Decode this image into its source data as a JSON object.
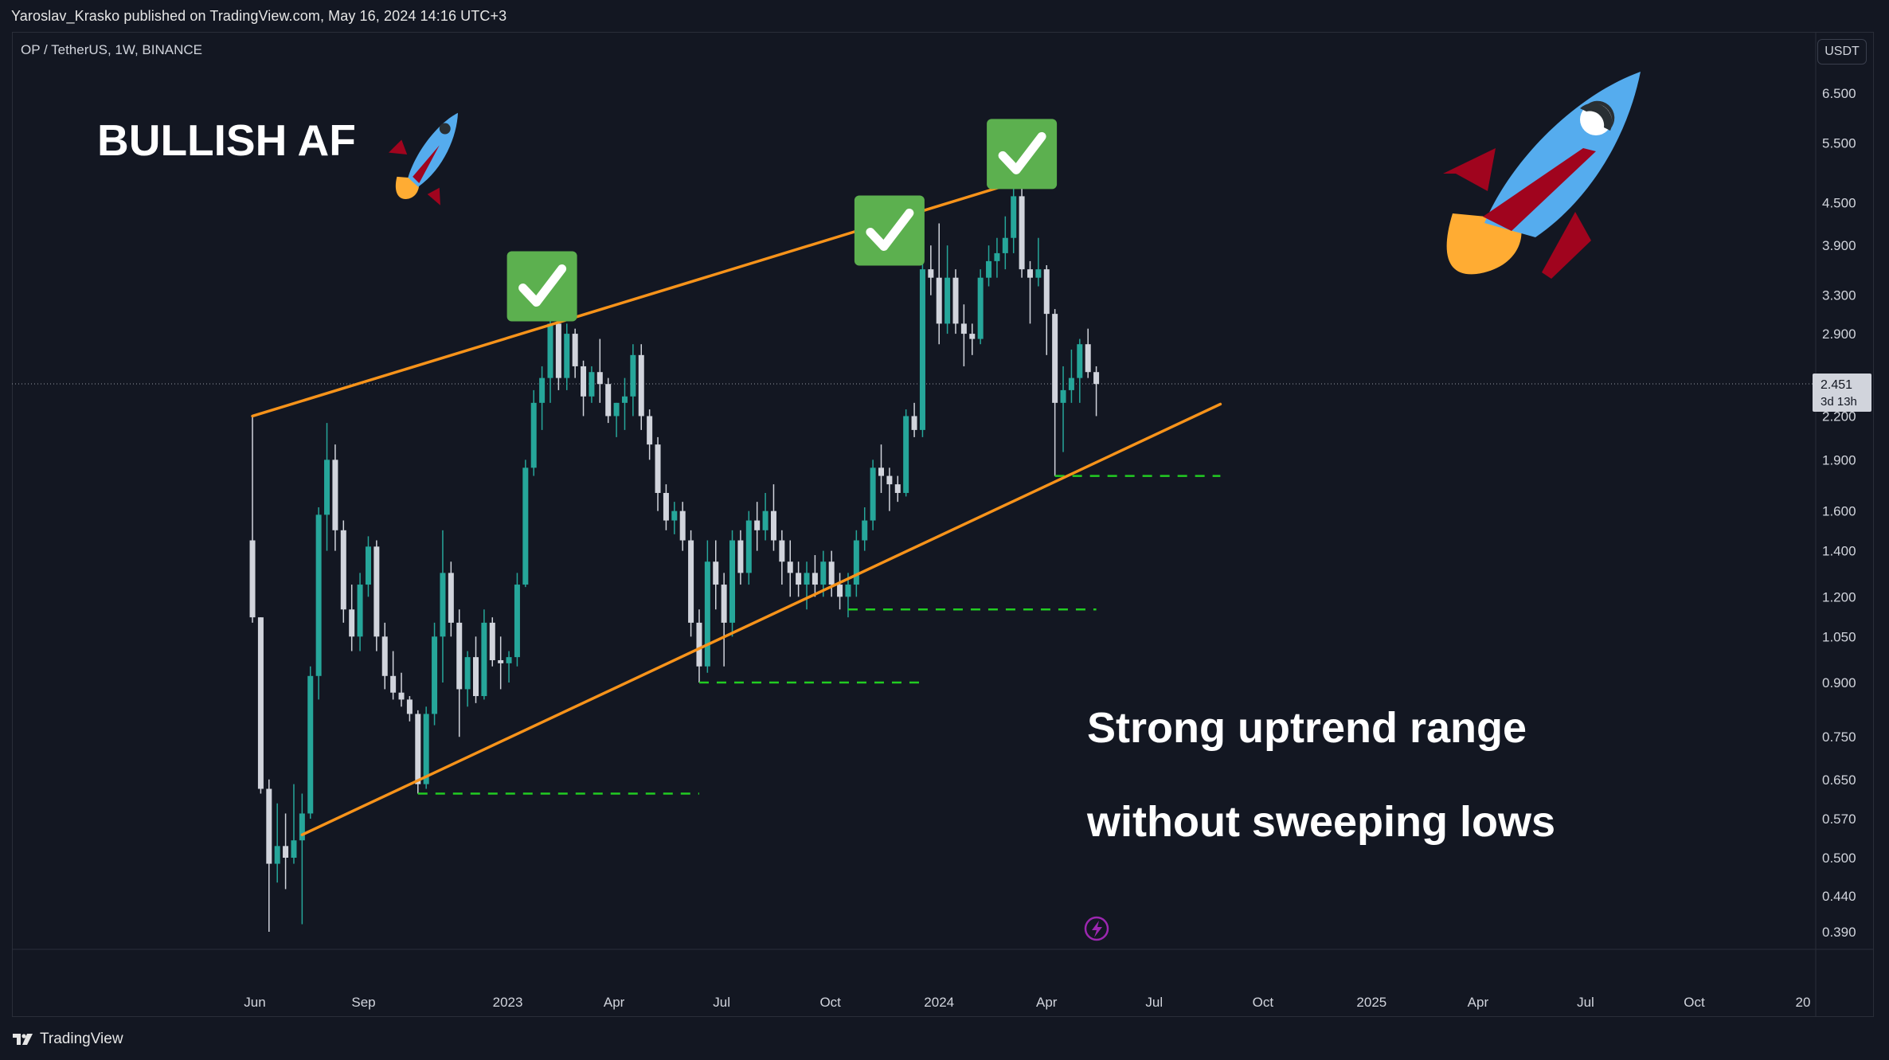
{
  "header": {
    "published_text": "Yaroslav_Krasko published on TradingView.com, May 16, 2024 14:16 UTC+3",
    "symbol": "OP / TetherUS, 1W, BINANCE",
    "currency_button": "USDT"
  },
  "footer": {
    "brand": "TradingView"
  },
  "annotations": {
    "headline": "BULLISH AF",
    "note_line1": "Strong uptrend range",
    "note_line2": "without sweeping lows"
  },
  "price_tag": {
    "price": "2.451",
    "countdown": "3d 13h"
  },
  "colors": {
    "background": "#131722",
    "up_candle": "#26a69a",
    "down_candle": "#d1d4dc",
    "trendline": "#f7931a",
    "support_dash": "#22cc22",
    "check_bg": "#5cb04f",
    "rocket_body": "#55acee",
    "rocket_fin": "#a0041e",
    "rocket_flame": "#ffac33"
  },
  "chart_data": {
    "type": "candlestick",
    "title": "OP / TetherUS, 1W, BINANCE",
    "scale": "log",
    "ylim": [
      0.36,
      8.0
    ],
    "y_ticks": [
      "6.500",
      "5.500",
      "4.500",
      "3.900",
      "3.300",
      "2.900",
      "2.200",
      "1.900",
      "1.600",
      "1.400",
      "1.200",
      "1.050",
      "0.900",
      "0.750",
      "0.650",
      "0.570",
      "0.500",
      "0.440",
      "0.390"
    ],
    "x_ticks": [
      "Jun",
      "Sep",
      "2023",
      "Apr",
      "Jul",
      "Oct",
      "2024",
      "Apr",
      "Jul",
      "Oct",
      "2025",
      "Apr",
      "Jul",
      "Oct",
      "20"
    ],
    "x_tick_dates": [
      "2022-06-01",
      "2022-09-01",
      "2023-01-01",
      "2023-04-01",
      "2023-07-01",
      "2023-10-01",
      "2024-01-01",
      "2024-04-01",
      "2024-07-01",
      "2024-10-01",
      "2025-01-01",
      "2025-04-01",
      "2025-07-01",
      "2025-10-01",
      "2026-01-01"
    ],
    "last_price": 2.451,
    "candles": [
      {
        "date": "2022-05-30",
        "o": 1.45,
        "h": 2.2,
        "l": 1.1,
        "c": 1.12
      },
      {
        "date": "2022-06-06",
        "o": 1.12,
        "h": 1.12,
        "l": 0.62,
        "c": 0.63
      },
      {
        "date": "2022-06-13",
        "o": 0.63,
        "h": 0.65,
        "l": 0.39,
        "c": 0.49
      },
      {
        "date": "2022-06-20",
        "o": 0.49,
        "h": 0.6,
        "l": 0.46,
        "c": 0.52
      },
      {
        "date": "2022-06-27",
        "o": 0.52,
        "h": 0.58,
        "l": 0.45,
        "c": 0.5
      },
      {
        "date": "2022-07-04",
        "o": 0.5,
        "h": 0.64,
        "l": 0.49,
        "c": 0.53
      },
      {
        "date": "2022-07-11",
        "o": 0.53,
        "h": 0.62,
        "l": 0.4,
        "c": 0.58
      },
      {
        "date": "2022-07-18",
        "o": 0.58,
        "h": 0.95,
        "l": 0.57,
        "c": 0.92
      },
      {
        "date": "2022-07-25",
        "o": 0.92,
        "h": 1.62,
        "l": 0.85,
        "c": 1.58
      },
      {
        "date": "2022-08-01",
        "o": 1.58,
        "h": 2.15,
        "l": 1.4,
        "c": 1.9
      },
      {
        "date": "2022-08-08",
        "o": 1.9,
        "h": 2.0,
        "l": 1.4,
        "c": 1.5
      },
      {
        "date": "2022-08-15",
        "o": 1.5,
        "h": 1.55,
        "l": 1.1,
        "c": 1.15
      },
      {
        "date": "2022-08-22",
        "o": 1.15,
        "h": 1.25,
        "l": 1.0,
        "c": 1.05
      },
      {
        "date": "2022-08-29",
        "o": 1.05,
        "h": 1.3,
        "l": 1.0,
        "c": 1.25
      },
      {
        "date": "2022-09-05",
        "o": 1.25,
        "h": 1.47,
        "l": 1.2,
        "c": 1.42
      },
      {
        "date": "2022-09-12",
        "o": 1.42,
        "h": 1.45,
        "l": 1.0,
        "c": 1.05
      },
      {
        "date": "2022-09-19",
        "o": 1.05,
        "h": 1.1,
        "l": 0.88,
        "c": 0.92
      },
      {
        "date": "2022-09-26",
        "o": 0.92,
        "h": 1.0,
        "l": 0.85,
        "c": 0.87
      },
      {
        "date": "2022-10-03",
        "o": 0.87,
        "h": 0.93,
        "l": 0.83,
        "c": 0.85
      },
      {
        "date": "2022-10-10",
        "o": 0.85,
        "h": 0.86,
        "l": 0.79,
        "c": 0.81
      },
      {
        "date": "2022-10-17",
        "o": 0.81,
        "h": 0.82,
        "l": 0.62,
        "c": 0.64
      },
      {
        "date": "2022-10-24",
        "o": 0.64,
        "h": 0.83,
        "l": 0.63,
        "c": 0.81
      },
      {
        "date": "2022-10-31",
        "o": 0.81,
        "h": 1.1,
        "l": 0.78,
        "c": 1.05
      },
      {
        "date": "2022-11-07",
        "o": 1.05,
        "h": 1.5,
        "l": 0.9,
        "c": 1.3
      },
      {
        "date": "2022-11-14",
        "o": 1.3,
        "h": 1.35,
        "l": 1.05,
        "c": 1.1
      },
      {
        "date": "2022-11-21",
        "o": 1.1,
        "h": 1.15,
        "l": 0.75,
        "c": 0.88
      },
      {
        "date": "2022-11-28",
        "o": 0.88,
        "h": 1.0,
        "l": 0.83,
        "c": 0.98
      },
      {
        "date": "2022-12-05",
        "o": 0.98,
        "h": 1.05,
        "l": 0.84,
        "c": 0.86
      },
      {
        "date": "2022-12-12",
        "o": 0.86,
        "h": 1.15,
        "l": 0.85,
        "c": 1.1
      },
      {
        "date": "2022-12-19",
        "o": 1.1,
        "h": 1.12,
        "l": 0.95,
        "c": 0.97
      },
      {
        "date": "2022-12-26",
        "o": 0.97,
        "h": 1.05,
        "l": 0.88,
        "c": 0.96
      },
      {
        "date": "2023-01-02",
        "o": 0.96,
        "h": 1.0,
        "l": 0.9,
        "c": 0.98
      },
      {
        "date": "2023-01-09",
        "o": 0.98,
        "h": 1.3,
        "l": 0.95,
        "c": 1.25
      },
      {
        "date": "2023-01-16",
        "o": 1.25,
        "h": 1.9,
        "l": 1.24,
        "c": 1.85
      },
      {
        "date": "2023-01-23",
        "o": 1.85,
        "h": 2.4,
        "l": 1.8,
        "c": 2.3
      },
      {
        "date": "2023-01-30",
        "o": 2.3,
        "h": 2.6,
        "l": 2.1,
        "c": 2.5
      },
      {
        "date": "2023-02-06",
        "o": 2.5,
        "h": 3.1,
        "l": 2.3,
        "c": 3.0
      },
      {
        "date": "2023-02-13",
        "o": 3.0,
        "h": 3.1,
        "l": 2.4,
        "c": 2.5
      },
      {
        "date": "2023-02-20",
        "o": 2.5,
        "h": 3.0,
        "l": 2.4,
        "c": 2.9
      },
      {
        "date": "2023-02-27",
        "o": 2.9,
        "h": 2.95,
        "l": 2.5,
        "c": 2.6
      },
      {
        "date": "2023-03-06",
        "o": 2.6,
        "h": 2.65,
        "l": 2.2,
        "c": 2.35
      },
      {
        "date": "2023-03-13",
        "o": 2.35,
        "h": 2.6,
        "l": 2.3,
        "c": 2.55
      },
      {
        "date": "2023-03-20",
        "o": 2.55,
        "h": 2.85,
        "l": 2.3,
        "c": 2.45
      },
      {
        "date": "2023-03-27",
        "o": 2.45,
        "h": 2.5,
        "l": 2.15,
        "c": 2.2
      },
      {
        "date": "2023-04-03",
        "o": 2.2,
        "h": 2.3,
        "l": 2.05,
        "c": 2.3
      },
      {
        "date": "2023-04-10",
        "o": 2.3,
        "h": 2.5,
        "l": 2.1,
        "c": 2.35
      },
      {
        "date": "2023-04-17",
        "o": 2.35,
        "h": 2.8,
        "l": 2.2,
        "c": 2.7
      },
      {
        "date": "2023-04-24",
        "o": 2.7,
        "h": 2.8,
        "l": 2.1,
        "c": 2.2
      },
      {
        "date": "2023-05-01",
        "o": 2.2,
        "h": 2.25,
        "l": 1.9,
        "c": 2.0
      },
      {
        "date": "2023-05-08",
        "o": 2.0,
        "h": 2.05,
        "l": 1.6,
        "c": 1.7
      },
      {
        "date": "2023-05-15",
        "o": 1.7,
        "h": 1.75,
        "l": 1.5,
        "c": 1.55
      },
      {
        "date": "2023-05-22",
        "o": 1.55,
        "h": 1.65,
        "l": 1.48,
        "c": 1.6
      },
      {
        "date": "2023-05-29",
        "o": 1.6,
        "h": 1.65,
        "l": 1.4,
        "c": 1.45
      },
      {
        "date": "2023-06-05",
        "o": 1.45,
        "h": 1.5,
        "l": 1.05,
        "c": 1.1
      },
      {
        "date": "2023-06-12",
        "o": 1.1,
        "h": 1.15,
        "l": 0.9,
        "c": 0.95
      },
      {
        "date": "2023-06-19",
        "o": 0.95,
        "h": 1.45,
        "l": 0.93,
        "c": 1.35
      },
      {
        "date": "2023-06-26",
        "o": 1.35,
        "h": 1.45,
        "l": 1.15,
        "c": 1.25
      },
      {
        "date": "2023-07-03",
        "o": 1.25,
        "h": 1.3,
        "l": 0.95,
        "c": 1.1
      },
      {
        "date": "2023-07-10",
        "o": 1.1,
        "h": 1.5,
        "l": 1.05,
        "c": 1.45
      },
      {
        "date": "2023-07-17",
        "o": 1.45,
        "h": 1.5,
        "l": 1.25,
        "c": 1.3
      },
      {
        "date": "2023-07-24",
        "o": 1.3,
        "h": 1.6,
        "l": 1.25,
        "c": 1.55
      },
      {
        "date": "2023-07-31",
        "o": 1.55,
        "h": 1.65,
        "l": 1.4,
        "c": 1.5
      },
      {
        "date": "2023-08-07",
        "o": 1.5,
        "h": 1.7,
        "l": 1.45,
        "c": 1.6
      },
      {
        "date": "2023-08-14",
        "o": 1.6,
        "h": 1.75,
        "l": 1.4,
        "c": 1.45
      },
      {
        "date": "2023-08-21",
        "o": 1.45,
        "h": 1.5,
        "l": 1.25,
        "c": 1.35
      },
      {
        "date": "2023-08-28",
        "o": 1.35,
        "h": 1.45,
        "l": 1.2,
        "c": 1.3
      },
      {
        "date": "2023-09-04",
        "o": 1.3,
        "h": 1.35,
        "l": 1.2,
        "c": 1.25
      },
      {
        "date": "2023-09-11",
        "o": 1.25,
        "h": 1.35,
        "l": 1.15,
        "c": 1.3
      },
      {
        "date": "2023-09-18",
        "o": 1.3,
        "h": 1.38,
        "l": 1.2,
        "c": 1.25
      },
      {
        "date": "2023-09-25",
        "o": 1.25,
        "h": 1.4,
        "l": 1.2,
        "c": 1.35
      },
      {
        "date": "2023-10-02",
        "o": 1.35,
        "h": 1.4,
        "l": 1.2,
        "c": 1.25
      },
      {
        "date": "2023-10-09",
        "o": 1.25,
        "h": 1.3,
        "l": 1.15,
        "c": 1.2
      },
      {
        "date": "2023-10-16",
        "o": 1.2,
        "h": 1.3,
        "l": 1.12,
        "c": 1.25
      },
      {
        "date": "2023-10-23",
        "o": 1.25,
        "h": 1.5,
        "l": 1.2,
        "c": 1.45
      },
      {
        "date": "2023-10-30",
        "o": 1.45,
        "h": 1.62,
        "l": 1.4,
        "c": 1.55
      },
      {
        "date": "2023-11-06",
        "o": 1.55,
        "h": 1.9,
        "l": 1.5,
        "c": 1.85
      },
      {
        "date": "2023-11-13",
        "o": 1.85,
        "h": 2.0,
        "l": 1.7,
        "c": 1.8
      },
      {
        "date": "2023-11-20",
        "o": 1.8,
        "h": 1.85,
        "l": 1.6,
        "c": 1.75
      },
      {
        "date": "2023-11-27",
        "o": 1.75,
        "h": 1.8,
        "l": 1.65,
        "c": 1.7
      },
      {
        "date": "2023-12-04",
        "o": 1.7,
        "h": 2.25,
        "l": 1.68,
        "c": 2.2
      },
      {
        "date": "2023-12-11",
        "o": 2.2,
        "h": 2.3,
        "l": 2.05,
        "c": 2.1
      },
      {
        "date": "2023-12-18",
        "o": 2.1,
        "h": 3.7,
        "l": 2.05,
        "c": 3.6
      },
      {
        "date": "2023-12-25",
        "o": 3.6,
        "h": 3.9,
        "l": 3.3,
        "c": 3.5
      },
      {
        "date": "2024-01-01",
        "o": 3.5,
        "h": 4.2,
        "l": 2.8,
        "c": 3.0
      },
      {
        "date": "2024-01-08",
        "o": 3.0,
        "h": 3.9,
        "l": 2.9,
        "c": 3.5
      },
      {
        "date": "2024-01-15",
        "o": 3.5,
        "h": 3.6,
        "l": 2.9,
        "c": 3.0
      },
      {
        "date": "2024-01-22",
        "o": 3.0,
        "h": 3.2,
        "l": 2.6,
        "c": 2.9
      },
      {
        "date": "2024-01-29",
        "o": 2.9,
        "h": 3.0,
        "l": 2.7,
        "c": 2.85
      },
      {
        "date": "2024-02-05",
        "o": 2.85,
        "h": 3.6,
        "l": 2.8,
        "c": 3.5
      },
      {
        "date": "2024-02-12",
        "o": 3.5,
        "h": 3.9,
        "l": 3.4,
        "c": 3.7
      },
      {
        "date": "2024-02-19",
        "o": 3.7,
        "h": 4.0,
        "l": 3.5,
        "c": 3.8
      },
      {
        "date": "2024-02-26",
        "o": 3.8,
        "h": 4.3,
        "l": 3.6,
        "c": 4.0
      },
      {
        "date": "2024-03-04",
        "o": 4.0,
        "h": 4.8,
        "l": 3.8,
        "c": 4.6
      },
      {
        "date": "2024-03-11",
        "o": 4.6,
        "h": 4.85,
        "l": 3.5,
        "c": 3.6
      },
      {
        "date": "2024-03-18",
        "o": 3.6,
        "h": 3.7,
        "l": 3.0,
        "c": 3.5
      },
      {
        "date": "2024-03-25",
        "o": 3.5,
        "h": 4.0,
        "l": 3.4,
        "c": 3.6
      },
      {
        "date": "2024-04-01",
        "o": 3.6,
        "h": 3.65,
        "l": 2.7,
        "c": 3.1
      },
      {
        "date": "2024-04-08",
        "o": 3.1,
        "h": 3.15,
        "l": 1.8,
        "c": 2.3
      },
      {
        "date": "2024-04-15",
        "o": 2.3,
        "h": 2.6,
        "l": 1.95,
        "c": 2.4
      },
      {
        "date": "2024-04-22",
        "o": 2.4,
        "h": 2.75,
        "l": 2.3,
        "c": 2.5
      },
      {
        "date": "2024-04-29",
        "o": 2.5,
        "h": 2.85,
        "l": 2.3,
        "c": 2.8
      },
      {
        "date": "2024-05-06",
        "o": 2.8,
        "h": 2.95,
        "l": 2.5,
        "c": 2.55
      },
      {
        "date": "2024-05-13",
        "o": 2.55,
        "h": 2.6,
        "l": 2.2,
        "c": 2.45
      }
    ],
    "upper_trendline": [
      {
        "date": "2022-05-30",
        "price": 2.2
      },
      {
        "date": "2024-03-11",
        "price": 4.85
      }
    ],
    "lower_trendline": [
      {
        "date": "2022-07-11",
        "price": 0.54
      },
      {
        "date": "2024-08-26",
        "price": 2.29
      }
    ],
    "support_lines": [
      {
        "price": 0.62,
        "from": "2022-10-17",
        "to": "2023-06-12"
      },
      {
        "price": 0.9,
        "from": "2023-06-12",
        "to": "2023-12-18"
      },
      {
        "price": 1.15,
        "from": "2023-10-16",
        "to": "2024-05-13"
      },
      {
        "price": 1.8,
        "from": "2024-04-08",
        "to": "2024-08-26"
      }
    ],
    "checkmarks": [
      {
        "date": "2023-01-30",
        "price": 3.4
      },
      {
        "date": "2023-11-20",
        "price": 4.1
      },
      {
        "date": "2024-03-11",
        "price": 5.3
      }
    ]
  }
}
